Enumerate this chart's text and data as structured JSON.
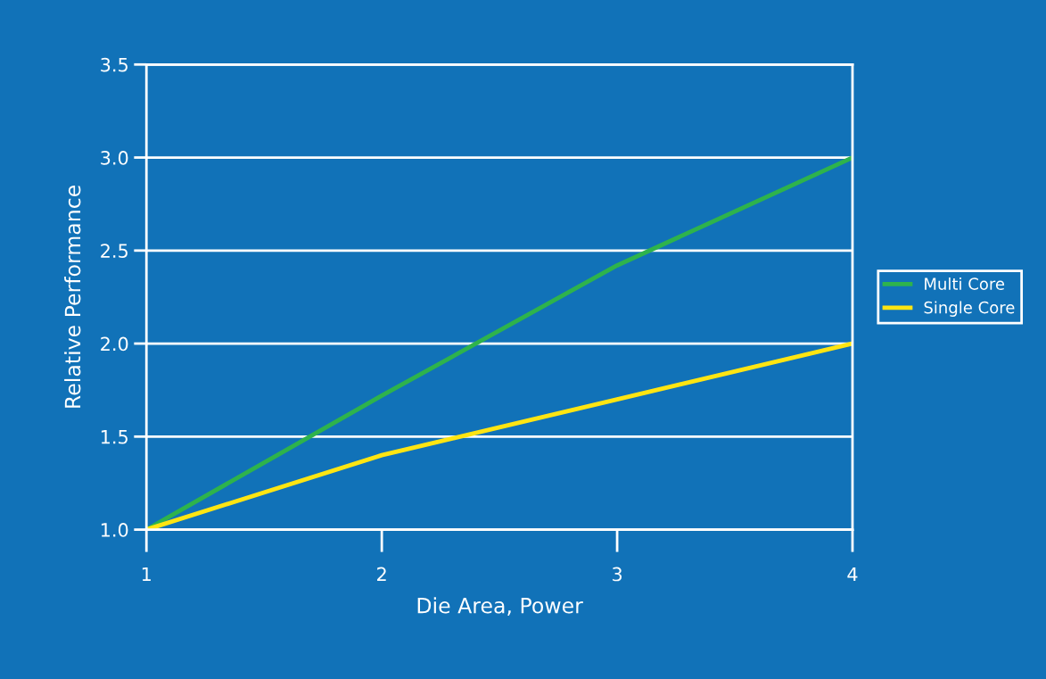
{
  "chart_data": {
    "type": "line",
    "xlabel": "Die Area, Power",
    "ylabel": "Relative Performance",
    "x": [
      1,
      2,
      3,
      4
    ],
    "series": [
      {
        "name": "Multi Core",
        "color": "#2eb34c",
        "values": [
          1.0,
          1.72,
          2.42,
          3.0
        ]
      },
      {
        "name": "Single Core",
        "color": "#ffe512",
        "values": [
          1.0,
          1.4,
          1.7,
          2.0
        ]
      }
    ],
    "xlim": [
      1,
      4
    ],
    "ylim": [
      1,
      3.5
    ],
    "xticks": [
      1,
      2,
      3,
      4
    ],
    "yticks": [
      {
        "value": 1,
        "label": "1.0"
      },
      {
        "value": 1.5,
        "label": "1.5"
      },
      {
        "value": 2,
        "label": "2.0"
      },
      {
        "value": 2.5,
        "label": "2.5"
      },
      {
        "value": 3,
        "label": "3.0"
      },
      {
        "value": 3.5,
        "label": "3.5"
      }
    ],
    "grid": "y",
    "legend": "right",
    "marker": "none",
    "line_style": "solid"
  }
}
